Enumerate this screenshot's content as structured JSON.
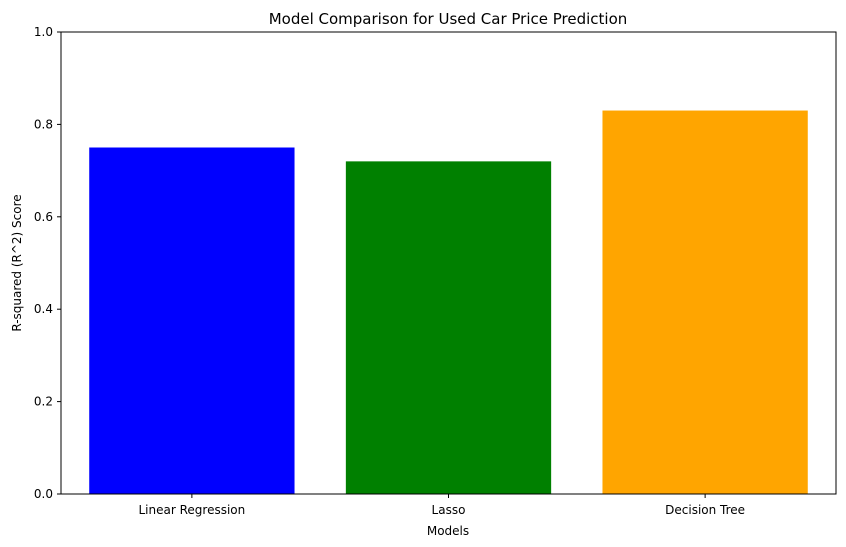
{
  "chart_data": {
    "type": "bar",
    "title": "Model Comparison for Used Car Price Prediction",
    "xlabel": "Models",
    "ylabel": "R-squared (R^2) Score",
    "categories": [
      "Linear Regression",
      "Lasso",
      "Decision Tree"
    ],
    "values": [
      0.75,
      0.72,
      0.83
    ],
    "colors": [
      "#0000ff",
      "#008000",
      "#ffa500"
    ],
    "ylim": [
      0,
      1
    ],
    "yticks": [
      0.0,
      0.2,
      0.4,
      0.6,
      0.8,
      1.0
    ],
    "ytick_labels": [
      "0.0",
      "0.2",
      "0.4",
      "0.6",
      "0.8",
      "1.0"
    ],
    "grid": false,
    "legend": "none"
  }
}
